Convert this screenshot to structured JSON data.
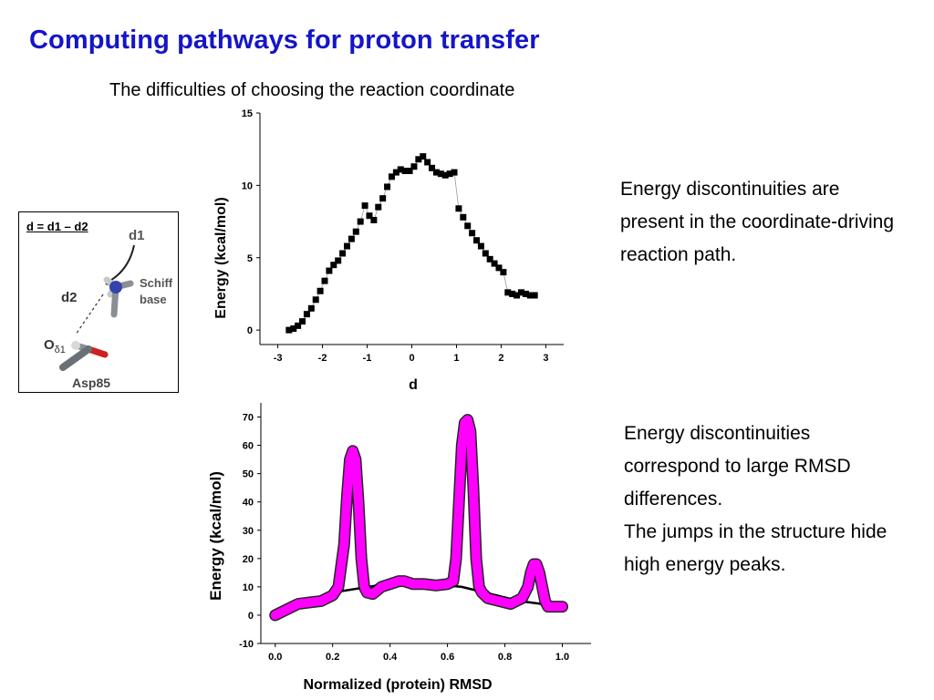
{
  "header": {
    "title": "Computing pathways for proton transfer",
    "subtitle": "The difficulties of choosing the reaction coordinate"
  },
  "notes": {
    "top": "Energy discontinuities are present in the coordinate-driving reaction path.",
    "bottom_lines": [
      "Energy discontinuities correspond to large RMSD differences.",
      "The jumps in the structure hide high energy peaks."
    ]
  },
  "inset": {
    "formula": "d = d1 – d2",
    "d1": "d1",
    "d2": "d2",
    "schiff": "Schiff",
    "base": "base",
    "o_label": "O",
    "o_sub": "δ1",
    "asp": "Asp85"
  },
  "colors": {
    "title": "#1515c8",
    "rmsd_series": "#ff00ff",
    "line": "#000000"
  },
  "chart_data": [
    {
      "type": "scatter",
      "title": "",
      "xlabel": "d",
      "ylabel": "Energy (kcal/mol)",
      "xlim": [
        -3.4,
        3.4
      ],
      "ylim": [
        -1,
        15
      ],
      "xticks": [
        -3,
        -2,
        -1,
        0,
        1,
        2,
        3
      ],
      "yticks": [
        0,
        5,
        10,
        15
      ],
      "series": [
        {
          "x": [
            -2.75,
            -2.65,
            -2.55,
            -2.45,
            -2.35,
            -2.25,
            -2.15,
            -2.05,
            -1.95,
            -1.85,
            -1.75,
            -1.65,
            -1.55,
            -1.45,
            -1.35,
            -1.25,
            -1.15,
            -1.05,
            -0.95,
            -0.85,
            -0.75,
            -0.65,
            -0.55,
            -0.45,
            -0.35,
            -0.25,
            -0.15,
            -0.05,
            0.05,
            0.15,
            0.25,
            0.35,
            0.45,
            0.55,
            0.65,
            0.75,
            0.85,
            0.95,
            1.05,
            1.15,
            1.25,
            1.35,
            1.45,
            1.55,
            1.65,
            1.75,
            1.85,
            1.95,
            2.05,
            2.15,
            2.25,
            2.35,
            2.45,
            2.55,
            2.65,
            2.75
          ],
          "y": [
            0.0,
            0.1,
            0.3,
            0.6,
            1.1,
            1.5,
            2.1,
            2.7,
            3.4,
            4.1,
            4.5,
            4.8,
            5.3,
            5.8,
            6.3,
            6.8,
            7.5,
            8.6,
            7.9,
            7.6,
            8.5,
            9.1,
            9.9,
            10.6,
            10.9,
            11.1,
            11.0,
            11.0,
            11.3,
            11.8,
            12.0,
            11.6,
            11.2,
            10.9,
            10.8,
            10.7,
            10.8,
            10.9,
            8.4,
            7.8,
            7.2,
            6.7,
            6.2,
            5.8,
            5.3,
            4.9,
            4.6,
            4.3,
            4.0,
            2.6,
            2.5,
            2.4,
            2.6,
            2.5,
            2.4,
            2.4
          ]
        }
      ]
    },
    {
      "type": "line",
      "title": "",
      "xlabel": "Normalized (protein) RMSD",
      "ylabel": "Energy (kcal/mol)",
      "xlim": [
        -0.05,
        1.1
      ],
      "ylim": [
        -10,
        75
      ],
      "xticks": [
        0.0,
        0.2,
        0.4,
        0.6,
        0.8,
        1.0
      ],
      "yticks": [
        -10,
        0,
        10,
        20,
        30,
        40,
        50,
        60,
        70
      ],
      "series": [
        {
          "name": "",
          "x": [
            0.0,
            0.04,
            0.08,
            0.12,
            0.16,
            0.2,
            0.22,
            0.24,
            0.25,
            0.26,
            0.27,
            0.28,
            0.29,
            0.3,
            0.31,
            0.32,
            0.34,
            0.37,
            0.4,
            0.43,
            0.45,
            0.48,
            0.52,
            0.56,
            0.6,
            0.62,
            0.63,
            0.64,
            0.65,
            0.66,
            0.67,
            0.68,
            0.69,
            0.7,
            0.71,
            0.72,
            0.74,
            0.78,
            0.82,
            0.86,
            0.88,
            0.89,
            0.9,
            0.91,
            0.92,
            0.93,
            0.94,
            0.95,
            0.97,
            1.0
          ],
          "y": [
            0,
            2,
            4,
            4.5,
            5,
            7,
            10,
            25,
            42,
            55,
            58,
            55,
            40,
            20,
            10,
            8,
            7.5,
            10,
            11,
            12,
            12,
            11,
            11,
            10.5,
            11,
            12,
            20,
            40,
            60,
            68,
            69,
            65,
            45,
            20,
            10,
            8,
            6,
            5,
            4,
            6,
            10,
            15,
            18,
            18,
            15,
            10,
            5,
            3,
            3,
            3
          ]
        },
        {
          "name": "",
          "x": [
            0.0,
            0.2,
            0.45,
            0.65,
            0.85,
            1.0
          ],
          "y": [
            0,
            8,
            12,
            10,
            5,
            3
          ]
        }
      ]
    }
  ]
}
